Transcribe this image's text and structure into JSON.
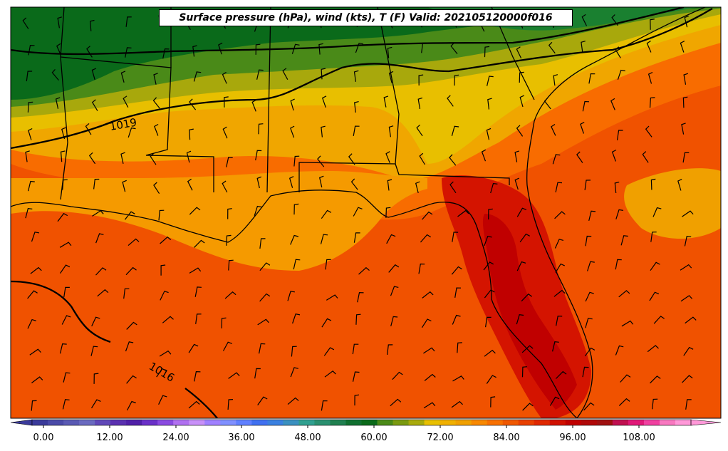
{
  "title": "Surface pressure (hPa), wind (kts), T (F) Valid: 202105120000f016",
  "isobar_labels": [
    "1019",
    "1016"
  ],
  "colorbar": {
    "tick_labels": [
      "0.00",
      "12.00",
      "24.00",
      "36.00",
      "48.00",
      "60.00",
      "72.00",
      "84.00",
      "96.00",
      "108.00"
    ],
    "colors": [
      "#3a3a9a",
      "#4a4aa8",
      "#5a5ab4",
      "#6a6ac0",
      "#6048b8",
      "#5a30b0",
      "#5020a8",
      "#6a30c8",
      "#8a4ae0",
      "#b070f0",
      "#c890f8",
      "#a080ff",
      "#8090ff",
      "#6080ff",
      "#4070f0",
      "#3a80e0",
      "#3a90c0",
      "#30a090",
      "#2a9070",
      "#208050",
      "#107030",
      "#0a6a1a",
      "#4a8a18",
      "#7a9a10",
      "#a8aa0c",
      "#e8c000",
      "#f0b000",
      "#f0a000",
      "#f88800",
      "#f87000",
      "#f05800",
      "#e84000",
      "#e02800",
      "#d01000",
      "#c00000",
      "#b00808",
      "#a01010",
      "#c01050",
      "#e01878",
      "#f040a0",
      "#f878c0",
      "#ff98d8"
    ]
  },
  "legend_colors": {
    "dark_green": "#0a6a1a",
    "green": "#1a8030",
    "olive": "#4a8a18",
    "olive_yellow": "#a8aa0c",
    "yellow": "#e8c000",
    "gold": "#f0a800",
    "orange": "#f88c00",
    "dark_orange": "#f06a00",
    "red_orange": "#f05000",
    "red": "#d01000",
    "dark_red": "#c00000"
  }
}
